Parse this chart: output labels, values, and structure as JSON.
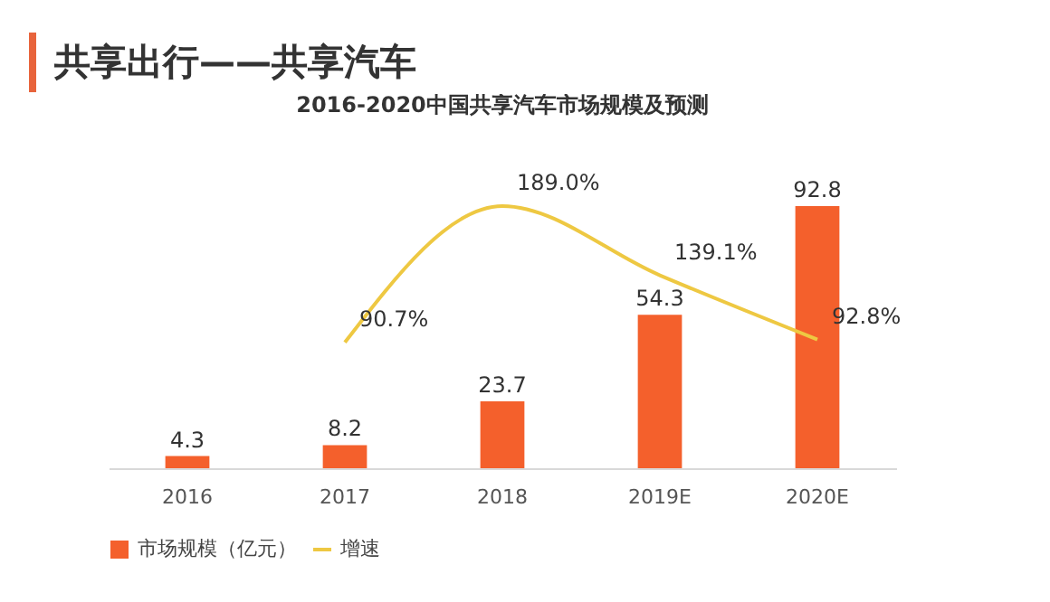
{
  "chart_data": {
    "type": "bar",
    "title": "共享出行——共享汽车",
    "subtitle": "2016-2020中国共享汽车市场规模及预测",
    "categories": [
      "2016",
      "2017",
      "2018",
      "2019E",
      "2020E"
    ],
    "series": [
      {
        "name": "市场规模（亿元）",
        "color": "#f4602c",
        "values": [
          4.3,
          8.2,
          23.7,
          54.3,
          92.8
        ]
      },
      {
        "name": "增速",
        "type": "line",
        "axis": "y2",
        "color": "#eec842",
        "values": [
          null,
          90.7,
          189.0,
          139.1,
          92.8
        ],
        "value_labels": [
          null,
          "90.7%",
          "189.0%",
          "139.1%",
          "92.8%"
        ]
      }
    ],
    "data_labels": true,
    "legend": "bottom",
    "tick_labels": "x"
  }
}
